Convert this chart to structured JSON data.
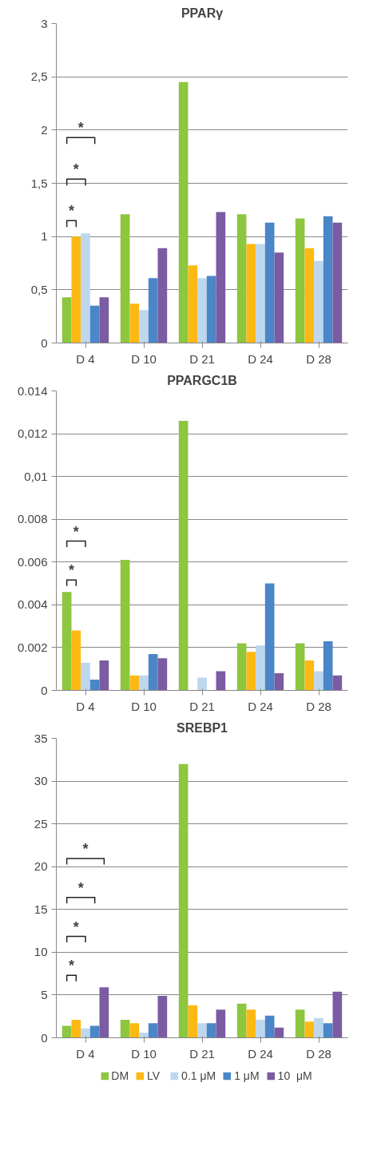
{
  "chart_data": [
    {
      "type": "bar",
      "title": "PPARγ",
      "categories": [
        "D 4",
        "D 10",
        "D 21",
        "D 24",
        "D 28"
      ],
      "ylim": [
        0,
        3
      ],
      "yticks": [
        0,
        {
          "value": 0.5,
          "label": "0,5"
        },
        1,
        {
          "value": 1.5,
          "label": "1,5"
        },
        2,
        {
          "value": 2.5,
          "label": "2,5"
        },
        3
      ],
      "grid": "y",
      "series": [
        {
          "color": "#8dc63f",
          "values": [
            0.43,
            1.21,
            2.45,
            1.21,
            1.17
          ]
        },
        {
          "color": "#fdb913",
          "values": [
            1.0,
            0.37,
            0.73,
            0.93,
            0.89
          ]
        },
        {
          "color": "#bdd7ee",
          "values": [
            1.03,
            0.31,
            0.61,
            0.93,
            0.77
          ]
        },
        {
          "color": "#4a86c8",
          "values": [
            0.35,
            0.61,
            0.63,
            1.13,
            1.19
          ]
        },
        {
          "color": "#7b5ba1",
          "values": [
            0.43,
            0.89,
            1.23,
            0.85,
            1.13
          ]
        }
      ],
      "annotations": [
        "*",
        "*",
        "*"
      ]
    },
    {
      "type": "bar",
      "title": "PPARGC1B",
      "categories": [
        "D 4",
        "D 10",
        "D 21",
        "D 24",
        "D 28"
      ],
      "ylim": [
        0,
        0.014
      ],
      "yticks": [
        0,
        {
          "value": 0.002,
          "label": "0.002"
        },
        {
          "value": 0.004,
          "label": "0.004"
        },
        {
          "value": 0.006,
          "label": "0.006"
        },
        {
          "value": 0.008,
          "label": "0.008"
        },
        {
          "value": 0.01,
          "label": "0,01"
        },
        {
          "value": 0.012,
          "label": "0,012"
        },
        {
          "value": 0.014,
          "label": "0.014"
        }
      ],
      "grid": "y",
      "series": [
        {
          "color": "#8dc63f",
          "values": [
            0.0046,
            0.0061,
            0.0126,
            0.0022,
            0.0022
          ]
        },
        {
          "color": "#fdb913",
          "values": [
            0.0028,
            0.0007,
            0,
            0.0018,
            0.0014
          ]
        },
        {
          "color": "#bdd7ee",
          "values": [
            0.0013,
            0.0007,
            0.0006,
            0.0021,
            0.0009
          ]
        },
        {
          "color": "#4a86c8",
          "values": [
            0.0005,
            0.0017,
            0,
            0.005,
            0.0023
          ]
        },
        {
          "color": "#7b5ba1",
          "values": [
            0.0014,
            0.0015,
            0.0009,
            0.0008,
            0.0007
          ]
        }
      ],
      "annotations": [
        "*",
        "*"
      ]
    },
    {
      "type": "bar",
      "title": "SREBP1",
      "categories": [
        "D 4",
        "D 10",
        "D 21",
        "D 24",
        "D 28"
      ],
      "ylim": [
        0,
        35
      ],
      "yticks": [
        0,
        5,
        10,
        15,
        20,
        25,
        30,
        35
      ],
      "grid": "y",
      "legend": "bottom",
      "series": [
        {
          "name": "DM",
          "color": "#8dc63f",
          "values": [
            1.4,
            2.1,
            32.0,
            4.0,
            3.3
          ]
        },
        {
          "name": "LV",
          "color": "#fdb913",
          "values": [
            2.1,
            1.7,
            3.8,
            3.3,
            1.9
          ]
        },
        {
          "name": "0.1 μM",
          "color": "#bdd7ee",
          "values": [
            1.1,
            0.6,
            1.7,
            2.1,
            2.3
          ]
        },
        {
          "name": "1 μM",
          "color": "#4a86c8",
          "values": [
            1.4,
            1.7,
            1.7,
            2.6,
            1.7
          ]
        },
        {
          "name": "10  μM",
          "color": "#7b5ba1",
          "values": [
            5.9,
            4.9,
            3.3,
            1.2,
            5.4
          ]
        }
      ],
      "annotations": [
        "*",
        "*",
        "*",
        "*"
      ]
    }
  ]
}
